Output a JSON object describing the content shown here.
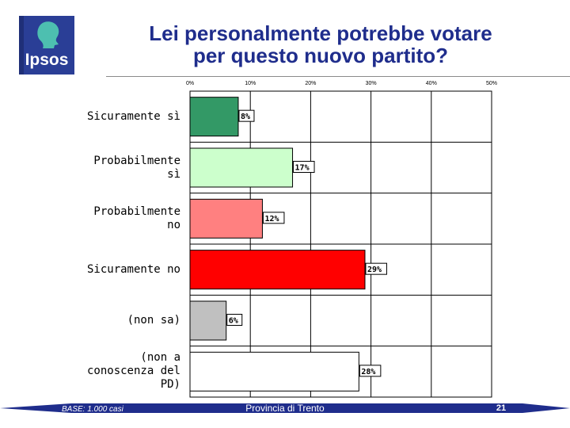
{
  "header": {
    "logo_text": "Ipsos",
    "title_lines": [
      "Lei personalmente potrebbe votare",
      "per questo nuovo partito?"
    ]
  },
  "colors": {
    "title": "#1f2d8c",
    "logo_bg": "#2a3e96",
    "footer_band": "#1f2d8c"
  },
  "chart_data": {
    "type": "bar",
    "orientation": "horizontal",
    "title": "Lei personalmente potrebbe votare per questo nuovo partito?",
    "categories": [
      [
        "Sicuramente sì"
      ],
      [
        "Probabilmente",
        "sì"
      ],
      [
        "Probabilmente",
        "no"
      ],
      [
        "Sicuramente no"
      ],
      [
        "(non sa)"
      ],
      [
        "(non a",
        "conoscenza del",
        "PD)"
      ]
    ],
    "values": [
      8,
      17,
      12,
      29,
      6,
      28
    ],
    "value_labels": [
      "8%",
      "17%",
      "12%",
      "29%",
      "6%",
      "28%"
    ],
    "bar_colors": [
      "#339966",
      "#ccffcc",
      "#ff8080",
      "#ff0000",
      "#c0c0c0",
      "#ffffff"
    ],
    "xlim": [
      0,
      50
    ],
    "x_ticks": [
      0,
      10,
      20,
      30,
      40,
      50
    ],
    "x_tick_labels": [
      "0%",
      "10%",
      "20%",
      "30%",
      "40%",
      "50%"
    ],
    "grid": true,
    "legend": "none"
  },
  "footer": {
    "base_note": "BASE: 1.000 casi",
    "center_text": "Provincia di Trento",
    "page_number": "21"
  }
}
